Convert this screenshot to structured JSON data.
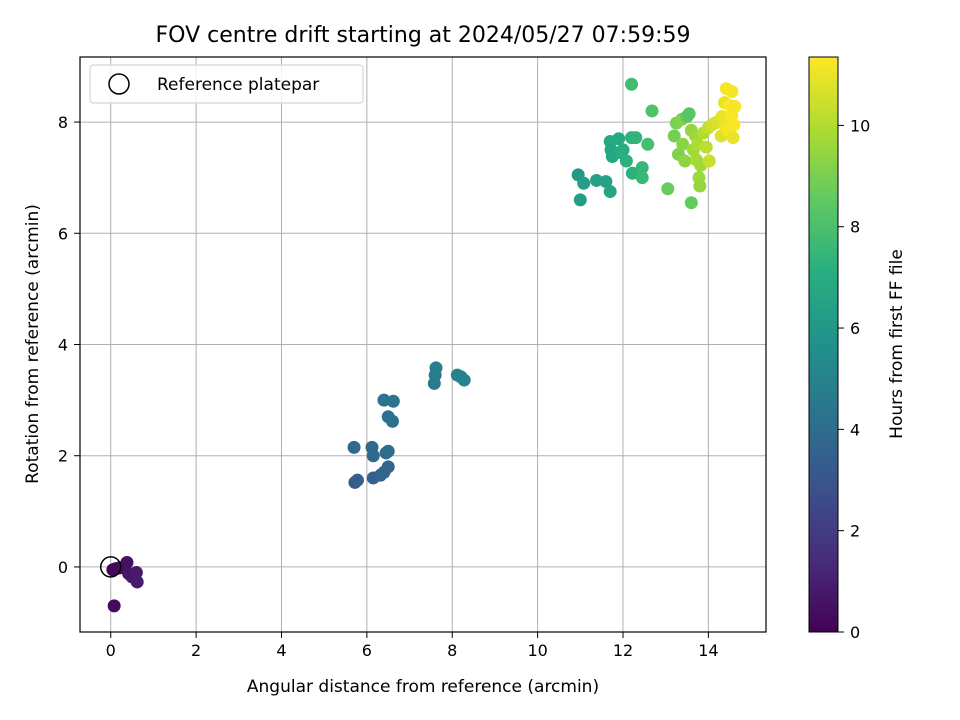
{
  "chart_data": {
    "type": "scatter",
    "title": "FOV centre drift starting at 2024/05/27 07:59:59",
    "xlabel": "Angular distance from reference (arcmin)",
    "ylabel": "Rotation from reference (arcmin)",
    "xlim": [
      -0.72,
      15.35
    ],
    "ylim": [
      -1.17,
      9.17
    ],
    "xticks": [
      0,
      2,
      4,
      6,
      8,
      10,
      12,
      14
    ],
    "yticks": [
      0,
      2,
      4,
      6,
      8
    ],
    "grid": true,
    "legend": {
      "position": "upper-left",
      "entries": [
        "Reference platepar"
      ]
    },
    "reference_point": {
      "x": 0,
      "y": 0
    },
    "colorbar": {
      "label": "Hours from first FF file",
      "colormap": "viridis",
      "range": [
        0,
        11.35
      ],
      "ticks": [
        0,
        2,
        4,
        6,
        8,
        10
      ]
    },
    "points": [
      {
        "x": 0.05,
        "y": -0.05,
        "c": 0.1
      },
      {
        "x": 0.12,
        "y": -0.03,
        "c": 0.2
      },
      {
        "x": 0.2,
        "y": -0.02,
        "c": 0.3
      },
      {
        "x": 0.3,
        "y": 0.0,
        "c": 0.4
      },
      {
        "x": 0.38,
        "y": 0.08,
        "c": 0.5
      },
      {
        "x": 0.42,
        "y": -0.12,
        "c": 0.6
      },
      {
        "x": 0.5,
        "y": -0.18,
        "c": 0.7
      },
      {
        "x": 0.6,
        "y": -0.1,
        "c": 0.8
      },
      {
        "x": 0.62,
        "y": -0.27,
        "c": 0.9
      },
      {
        "x": 0.08,
        "y": -0.7,
        "c": 0.3
      },
      {
        "x": 5.7,
        "y": 2.15,
        "c": 3.9
      },
      {
        "x": 5.72,
        "y": 1.52,
        "c": 3.3
      },
      {
        "x": 5.78,
        "y": 1.56,
        "c": 3.4
      },
      {
        "x": 6.12,
        "y": 2.15,
        "c": 3.9
      },
      {
        "x": 6.15,
        "y": 2.0,
        "c": 3.8
      },
      {
        "x": 6.15,
        "y": 1.6,
        "c": 3.5
      },
      {
        "x": 6.32,
        "y": 1.65,
        "c": 3.6
      },
      {
        "x": 6.4,
        "y": 1.7,
        "c": 3.7
      },
      {
        "x": 6.45,
        "y": 2.05,
        "c": 3.9
      },
      {
        "x": 6.5,
        "y": 1.8,
        "c": 3.7
      },
      {
        "x": 6.5,
        "y": 2.08,
        "c": 4.0
      },
      {
        "x": 6.4,
        "y": 3.0,
        "c": 4.3
      },
      {
        "x": 6.5,
        "y": 2.7,
        "c": 4.2
      },
      {
        "x": 6.6,
        "y": 2.62,
        "c": 4.2
      },
      {
        "x": 6.62,
        "y": 2.98,
        "c": 4.4
      },
      {
        "x": 7.58,
        "y": 3.3,
        "c": 4.6
      },
      {
        "x": 7.6,
        "y": 3.45,
        "c": 4.7
      },
      {
        "x": 7.62,
        "y": 3.58,
        "c": 4.8
      },
      {
        "x": 8.12,
        "y": 3.45,
        "c": 4.9
      },
      {
        "x": 8.2,
        "y": 3.42,
        "c": 5.0
      },
      {
        "x": 8.28,
        "y": 3.36,
        "c": 5.1
      },
      {
        "x": 10.95,
        "y": 7.05,
        "c": 6.1
      },
      {
        "x": 11.0,
        "y": 6.6,
        "c": 6.2
      },
      {
        "x": 11.08,
        "y": 6.9,
        "c": 6.3
      },
      {
        "x": 11.38,
        "y": 6.95,
        "c": 6.4
      },
      {
        "x": 11.6,
        "y": 6.93,
        "c": 6.5
      },
      {
        "x": 11.7,
        "y": 6.75,
        "c": 6.6
      },
      {
        "x": 11.7,
        "y": 7.65,
        "c": 6.8
      },
      {
        "x": 11.72,
        "y": 7.5,
        "c": 6.7
      },
      {
        "x": 11.75,
        "y": 7.38,
        "c": 6.7
      },
      {
        "x": 11.9,
        "y": 7.7,
        "c": 6.9
      },
      {
        "x": 11.95,
        "y": 7.45,
        "c": 7.0
      },
      {
        "x": 12.0,
        "y": 7.5,
        "c": 7.1
      },
      {
        "x": 12.08,
        "y": 7.3,
        "c": 7.2
      },
      {
        "x": 12.2,
        "y": 7.72,
        "c": 7.3
      },
      {
        "x": 12.22,
        "y": 7.08,
        "c": 7.2
      },
      {
        "x": 12.3,
        "y": 7.72,
        "c": 7.4
      },
      {
        "x": 12.45,
        "y": 7.18,
        "c": 7.5
      },
      {
        "x": 12.45,
        "y": 7.0,
        "c": 7.6
      },
      {
        "x": 12.2,
        "y": 8.68,
        "c": 7.8
      },
      {
        "x": 12.58,
        "y": 7.6,
        "c": 7.9
      },
      {
        "x": 12.68,
        "y": 8.2,
        "c": 8.1
      },
      {
        "x": 13.05,
        "y": 6.8,
        "c": 8.7
      },
      {
        "x": 13.2,
        "y": 7.75,
        "c": 8.9
      },
      {
        "x": 13.25,
        "y": 7.98,
        "c": 9.0
      },
      {
        "x": 13.3,
        "y": 7.42,
        "c": 9.1
      },
      {
        "x": 13.38,
        "y": 8.05,
        "c": 9.2
      },
      {
        "x": 13.4,
        "y": 7.6,
        "c": 9.3
      },
      {
        "x": 13.45,
        "y": 7.3,
        "c": 9.4
      },
      {
        "x": 13.5,
        "y": 8.1,
        "c": 8.4
      },
      {
        "x": 13.55,
        "y": 8.15,
        "c": 8.3
      },
      {
        "x": 13.6,
        "y": 7.85,
        "c": 9.5
      },
      {
        "x": 13.6,
        "y": 6.55,
        "c": 8.6
      },
      {
        "x": 13.65,
        "y": 7.5,
        "c": 9.7
      },
      {
        "x": 13.7,
        "y": 7.75,
        "c": 9.6
      },
      {
        "x": 13.72,
        "y": 7.32,
        "c": 9.8
      },
      {
        "x": 13.75,
        "y": 7.6,
        "c": 9.9
      },
      {
        "x": 13.78,
        "y": 7.0,
        "c": 9.6
      },
      {
        "x": 13.8,
        "y": 6.85,
        "c": 9.5
      },
      {
        "x": 13.82,
        "y": 7.22,
        "c": 9.7
      },
      {
        "x": 13.88,
        "y": 7.8,
        "c": 10.0
      },
      {
        "x": 13.95,
        "y": 7.55,
        "c": 10.2
      },
      {
        "x": 14.0,
        "y": 7.9,
        "c": 10.3
      },
      {
        "x": 14.02,
        "y": 7.3,
        "c": 10.4
      },
      {
        "x": 14.08,
        "y": 7.95,
        "c": 10.5
      },
      {
        "x": 14.15,
        "y": 7.98,
        "c": 10.6
      },
      {
        "x": 14.2,
        "y": 8.0,
        "c": 10.7
      },
      {
        "x": 14.3,
        "y": 7.75,
        "c": 10.8
      },
      {
        "x": 14.32,
        "y": 8.1,
        "c": 10.9
      },
      {
        "x": 14.38,
        "y": 8.35,
        "c": 11.0
      },
      {
        "x": 14.4,
        "y": 7.92,
        "c": 11.1
      },
      {
        "x": 14.42,
        "y": 8.6,
        "c": 11.2
      },
      {
        "x": 14.45,
        "y": 8.05,
        "c": 11.1
      },
      {
        "x": 14.48,
        "y": 7.85,
        "c": 11.2
      },
      {
        "x": 14.5,
        "y": 8.3,
        "c": 11.3
      },
      {
        "x": 14.55,
        "y": 8.55,
        "c": 11.2
      },
      {
        "x": 14.55,
        "y": 8.12,
        "c": 11.3
      },
      {
        "x": 14.58,
        "y": 7.72,
        "c": 11.0
      },
      {
        "x": 14.6,
        "y": 7.95,
        "c": 11.3
      },
      {
        "x": 14.62,
        "y": 8.28,
        "c": 11.2
      }
    ]
  }
}
